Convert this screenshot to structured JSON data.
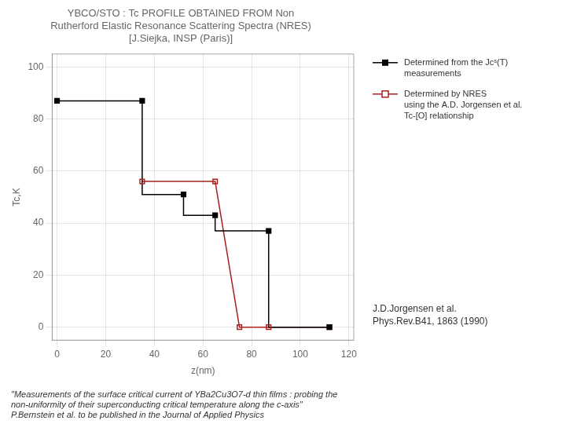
{
  "chart_data": {
    "type": "line",
    "title": "YBCO/STO : Tc PROFILE OBTAINED FROM Non\nRutherford Elastic Resonance Scattering Spectra (NRES)\n[J.Siejka, INSP (Paris)]",
    "x_label": "z(nm)",
    "y_label": "Tc,K",
    "xlim": [
      -2,
      122
    ],
    "ylim": [
      -5,
      105
    ],
    "xticks": [
      0,
      20,
      40,
      60,
      80,
      100,
      120
    ],
    "yticks": [
      0,
      20,
      40,
      60,
      80,
      100
    ],
    "grid": true,
    "legend": "right",
    "series": [
      {
        "name": "Determined from the Jcˢ(T)\nmeasurements",
        "color": "#000000",
        "marker": "square",
        "line_style": "solid",
        "x": [
          0,
          35,
          35,
          52,
          52,
          65,
          65,
          87,
          87,
          112
        ],
        "values": [
          87,
          87,
          51,
          51,
          43,
          43,
          37,
          37,
          0,
          0
        ],
        "marker_x": [
          0,
          35,
          52,
          65,
          87,
          112
        ],
        "marker_values": [
          87,
          87,
          51,
          43,
          37,
          0
        ]
      },
      {
        "name": "Determined by NRES\nusing the A.D. Jorgensen et al.\nTc-[O] relationship",
        "color": "#AA2020",
        "marker": "open_square",
        "line_style": "solid",
        "x": [
          35,
          65,
          75,
          87,
          87,
          112
        ],
        "values": [
          56,
          56,
          0,
          0,
          0,
          0
        ],
        "marker_x": [
          35,
          65,
          75,
          87,
          112
        ],
        "marker_values": [
          56,
          56,
          0,
          0,
          0
        ]
      }
    ],
    "annotations": [
      "J.D.Jorgensen et al.",
      "Phys.Rev.B41, 1863 (1990)"
    ],
    "footer": "\"Measurements of the surface critical current of YBa2Cu3O7-d thin films : probing the\nnon-uniformity of their superconducting critical temperature along the c-axis\"\nP.Bernstein et al. to be published in the Journal of Applied Physics"
  }
}
